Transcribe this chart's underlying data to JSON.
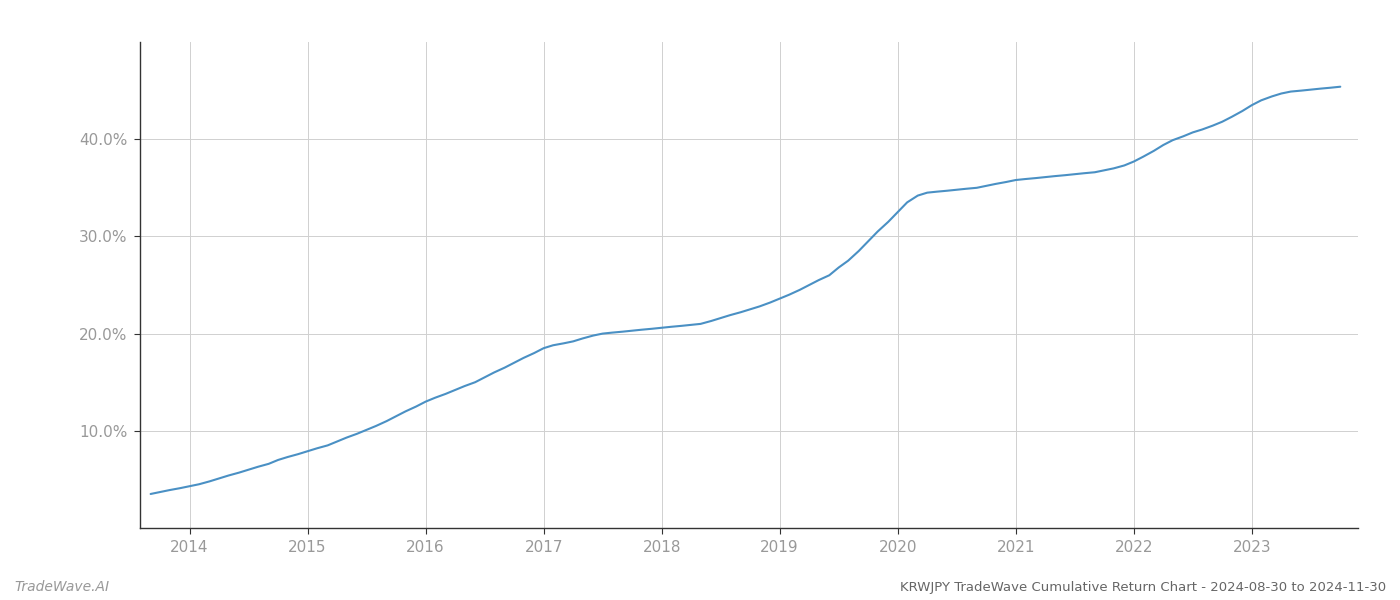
{
  "title": "KRWJPY TradeWave Cumulative Return Chart - 2024-08-30 to 2024-11-30",
  "watermark": "TradeWave.AI",
  "line_color": "#4a90c4",
  "background_color": "#ffffff",
  "grid_color": "#d0d0d0",
  "x_years": [
    2014,
    2015,
    2016,
    2017,
    2018,
    2019,
    2020,
    2021,
    2022,
    2023
  ],
  "x_data": [
    2013.67,
    2013.75,
    2013.83,
    2013.92,
    2014.0,
    2014.08,
    2014.17,
    2014.25,
    2014.33,
    2014.42,
    2014.5,
    2014.58,
    2014.67,
    2014.75,
    2014.83,
    2014.92,
    2015.0,
    2015.08,
    2015.17,
    2015.25,
    2015.33,
    2015.42,
    2015.5,
    2015.58,
    2015.67,
    2015.75,
    2015.83,
    2015.92,
    2016.0,
    2016.08,
    2016.17,
    2016.25,
    2016.33,
    2016.42,
    2016.5,
    2016.58,
    2016.67,
    2016.75,
    2016.83,
    2016.92,
    2017.0,
    2017.08,
    2017.17,
    2017.25,
    2017.33,
    2017.42,
    2017.5,
    2017.58,
    2017.67,
    2017.75,
    2017.83,
    2017.92,
    2018.0,
    2018.08,
    2018.17,
    2018.25,
    2018.33,
    2018.42,
    2018.5,
    2018.58,
    2018.67,
    2018.75,
    2018.83,
    2018.92,
    2019.0,
    2019.08,
    2019.17,
    2019.25,
    2019.33,
    2019.42,
    2019.5,
    2019.58,
    2019.67,
    2019.75,
    2019.83,
    2019.92,
    2020.0,
    2020.08,
    2020.17,
    2020.25,
    2020.33,
    2020.42,
    2020.5,
    2020.58,
    2020.67,
    2020.75,
    2020.83,
    2020.92,
    2021.0,
    2021.08,
    2021.17,
    2021.25,
    2021.33,
    2021.42,
    2021.5,
    2021.58,
    2021.67,
    2021.75,
    2021.83,
    2021.92,
    2022.0,
    2022.08,
    2022.17,
    2022.25,
    2022.33,
    2022.42,
    2022.5,
    2022.58,
    2022.67,
    2022.75,
    2022.83,
    2022.92,
    2023.0,
    2023.08,
    2023.17,
    2023.25,
    2023.33,
    2023.42,
    2023.5,
    2023.58,
    2023.67,
    2023.75
  ],
  "y_data": [
    3.5,
    3.7,
    3.9,
    4.1,
    4.3,
    4.5,
    4.8,
    5.1,
    5.4,
    5.7,
    6.0,
    6.3,
    6.6,
    7.0,
    7.3,
    7.6,
    7.9,
    8.2,
    8.5,
    8.9,
    9.3,
    9.7,
    10.1,
    10.5,
    11.0,
    11.5,
    12.0,
    12.5,
    13.0,
    13.4,
    13.8,
    14.2,
    14.6,
    15.0,
    15.5,
    16.0,
    16.5,
    17.0,
    17.5,
    18.0,
    18.5,
    18.8,
    19.0,
    19.2,
    19.5,
    19.8,
    20.0,
    20.1,
    20.2,
    20.3,
    20.4,
    20.5,
    20.6,
    20.7,
    20.8,
    20.9,
    21.0,
    21.3,
    21.6,
    21.9,
    22.2,
    22.5,
    22.8,
    23.2,
    23.6,
    24.0,
    24.5,
    25.0,
    25.5,
    26.0,
    26.8,
    27.5,
    28.5,
    29.5,
    30.5,
    31.5,
    32.5,
    33.5,
    34.2,
    34.5,
    34.6,
    34.7,
    34.8,
    34.9,
    35.0,
    35.2,
    35.4,
    35.6,
    35.8,
    35.9,
    36.0,
    36.1,
    36.2,
    36.3,
    36.4,
    36.5,
    36.6,
    36.8,
    37.0,
    37.3,
    37.7,
    38.2,
    38.8,
    39.4,
    39.9,
    40.3,
    40.7,
    41.0,
    41.4,
    41.8,
    42.3,
    42.9,
    43.5,
    44.0,
    44.4,
    44.7,
    44.9,
    45.0,
    45.1,
    45.2,
    45.3,
    45.4
  ],
  "ylim": [
    0,
    50
  ],
  "xlim": [
    2013.58,
    2023.9
  ],
  "yticks": [
    10.0,
    20.0,
    30.0,
    40.0
  ],
  "ytick_labels": [
    "10.0%",
    "20.0%",
    "30.0%",
    "40.0%"
  ],
  "title_fontsize": 9.5,
  "watermark_fontsize": 10,
  "axis_label_color": "#999999",
  "title_color": "#666666",
  "spine_color": "#333333",
  "tick_fontsize": 11
}
